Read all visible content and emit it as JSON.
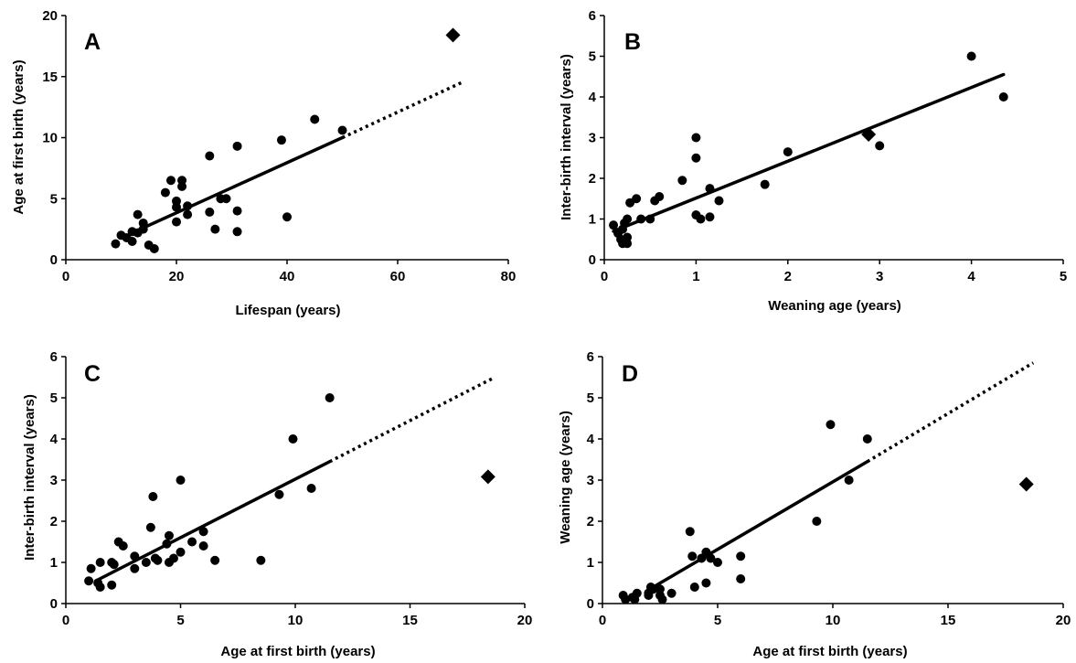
{
  "chart_data": [
    {
      "type": "scatter",
      "panel": "A",
      "xlabel": "Lifespan (years)",
      "ylabel": "Age at first birth (years)",
      "xlim": [
        0,
        80
      ],
      "ylim": [
        0,
        20
      ],
      "xticks": [
        "0",
        "20",
        "40",
        "60",
        "80"
      ],
      "yticks": [
        "0",
        "5",
        "10",
        "15",
        "20"
      ],
      "points": [
        [
          9,
          1.3
        ],
        [
          10,
          2
        ],
        [
          11,
          1.8
        ],
        [
          12,
          2.3
        ],
        [
          12,
          1.5
        ],
        [
          13,
          2.2
        ],
        [
          13,
          3.7
        ],
        [
          14,
          3
        ],
        [
          14,
          2.5
        ],
        [
          15,
          1.2
        ],
        [
          16,
          0.9
        ],
        [
          18,
          5.5
        ],
        [
          19,
          6.5
        ],
        [
          20,
          4.8
        ],
        [
          20,
          4.3
        ],
        [
          20,
          3.1
        ],
        [
          21,
          6.5
        ],
        [
          21,
          6
        ],
        [
          22,
          3.7
        ],
        [
          22,
          4.4
        ],
        [
          26,
          8.5
        ],
        [
          26,
          3.9
        ],
        [
          27,
          2.5
        ],
        [
          28,
          5
        ],
        [
          29,
          5
        ],
        [
          31,
          9.3
        ],
        [
          31,
          4
        ],
        [
          31,
          2.3
        ],
        [
          39,
          9.8
        ],
        [
          40,
          3.5
        ],
        [
          45,
          11.5
        ],
        [
          50,
          10.6
        ]
      ],
      "special_point": [
        70,
        18.4
      ],
      "trend": {
        "solid": [
          [
            12,
            2.2
          ],
          [
            50,
            10
          ]
        ],
        "dotted": [
          [
            50,
            10
          ],
          [
            72,
            14.6
          ]
        ]
      }
    },
    {
      "type": "scatter",
      "panel": "B",
      "xlabel": "Weaning age (years)",
      "ylabel": "Inter-birth interval (years)",
      "xlim": [
        0,
        5
      ],
      "ylim": [
        0,
        6
      ],
      "xticks": [
        "0",
        "1",
        "2",
        "3",
        "4",
        "5"
      ],
      "yticks": [
        "0",
        "1",
        "2",
        "3",
        "4",
        "5",
        "6"
      ],
      "points": [
        [
          0.1,
          0.85
        ],
        [
          0.15,
          0.65
        ],
        [
          0.18,
          0.5
        ],
        [
          0.2,
          0.75
        ],
        [
          0.2,
          0.4
        ],
        [
          0.22,
          0.9
        ],
        [
          0.25,
          0.55
        ],
        [
          0.25,
          1
        ],
        [
          0.25,
          0.4
        ],
        [
          0.28,
          1.4
        ],
        [
          0.35,
          1.5
        ],
        [
          0.4,
          1
        ],
        [
          0.5,
          1
        ],
        [
          0.55,
          1.45
        ],
        [
          0.6,
          1.55
        ],
        [
          0.85,
          1.95
        ],
        [
          1,
          3
        ],
        [
          1,
          2.5
        ],
        [
          1,
          1.1
        ],
        [
          1.05,
          1
        ],
        [
          1.15,
          1.05
        ],
        [
          1.15,
          1.75
        ],
        [
          1.25,
          1.45
        ],
        [
          1.75,
          1.85
        ],
        [
          2,
          2.65
        ],
        [
          3,
          2.8
        ],
        [
          4,
          5
        ],
        [
          4.35,
          4
        ]
      ],
      "special_point": [
        2.88,
        3.08
      ],
      "trend": {
        "solid": [
          [
            0.1,
            0.7
          ],
          [
            4.35,
            4.55
          ]
        ]
      }
    },
    {
      "type": "scatter",
      "panel": "C",
      "xlabel": "Age at first birth (years)",
      "ylabel": "Inter-birth interval (years)",
      "xlim": [
        0,
        20
      ],
      "ylim": [
        0,
        6
      ],
      "xticks": [
        "0",
        "5",
        "10",
        "15",
        "20"
      ],
      "yticks": [
        "0",
        "1",
        "2",
        "3",
        "4",
        "5",
        "6"
      ],
      "points": [
        [
          1,
          0.55
        ],
        [
          1.1,
          0.85
        ],
        [
          1.4,
          0.5
        ],
        [
          1.5,
          1
        ],
        [
          1.5,
          0.4
        ],
        [
          2,
          1
        ],
        [
          2,
          0.45
        ],
        [
          2.1,
          0.95
        ],
        [
          2.3,
          1.5
        ],
        [
          2.5,
          1.4
        ],
        [
          3,
          1.15
        ],
        [
          3,
          0.85
        ],
        [
          3.5,
          1
        ],
        [
          3.7,
          1.85
        ],
        [
          3.8,
          2.6
        ],
        [
          3.9,
          1.1
        ],
        [
          4,
          1.05
        ],
        [
          4.4,
          1.45
        ],
        [
          4.5,
          1.65
        ],
        [
          4.5,
          1
        ],
        [
          4.7,
          1.1
        ],
        [
          5,
          3
        ],
        [
          5,
          1.25
        ],
        [
          5.5,
          1.5
        ],
        [
          6,
          1.75
        ],
        [
          6,
          1.4
        ],
        [
          6.5,
          1.05
        ],
        [
          8.5,
          1.05
        ],
        [
          9.3,
          2.65
        ],
        [
          9.9,
          4
        ],
        [
          10.7,
          2.8
        ],
        [
          11.5,
          5
        ]
      ],
      "special_point": [
        18.4,
        3.08
      ],
      "trend": {
        "solid": [
          [
            1.3,
            0.55
          ],
          [
            11.5,
            3.45
          ]
        ],
        "dotted": [
          [
            11.5,
            3.45
          ],
          [
            18.7,
            5.5
          ]
        ]
      }
    },
    {
      "type": "scatter",
      "panel": "D",
      "xlabel": "Age at first birth (years)",
      "ylabel": "Weaning age (years)",
      "xlim": [
        0,
        20
      ],
      "ylim": [
        0,
        6
      ],
      "xticks": [
        "0",
        "5",
        "10",
        "15",
        "20"
      ],
      "yticks": [
        "0",
        "1",
        "2",
        "3",
        "4",
        "5",
        "6"
      ],
      "points": [
        [
          0.9,
          0.2
        ],
        [
          1,
          0.1
        ],
        [
          1.3,
          0.15
        ],
        [
          1.4,
          0.1
        ],
        [
          1.5,
          0.25
        ],
        [
          2,
          0.2
        ],
        [
          2,
          0.25
        ],
        [
          2.1,
          0.4
        ],
        [
          2.2,
          0.35
        ],
        [
          2.5,
          0.35
        ],
        [
          2.5,
          0.2
        ],
        [
          2.6,
          0.1
        ],
        [
          3,
          0.25
        ],
        [
          3.8,
          1.75
        ],
        [
          3.9,
          1.15
        ],
        [
          4,
          0.4
        ],
        [
          4.3,
          1.1
        ],
        [
          4.5,
          1.25
        ],
        [
          4.5,
          0.5
        ],
        [
          4.7,
          1.1
        ],
        [
          5,
          1
        ],
        [
          6,
          1.15
        ],
        [
          6,
          0.6
        ],
        [
          9.3,
          2
        ],
        [
          9.9,
          4.35
        ],
        [
          10.7,
          3
        ],
        [
          11.5,
          4
        ]
      ],
      "special_point": [
        18.4,
        2.9
      ],
      "trend": {
        "solid": [
          [
            1.9,
            0.3
          ],
          [
            11.5,
            3.45
          ]
        ],
        "dotted": [
          [
            11.5,
            3.45
          ],
          [
            18.7,
            5.85
          ]
        ]
      }
    }
  ]
}
